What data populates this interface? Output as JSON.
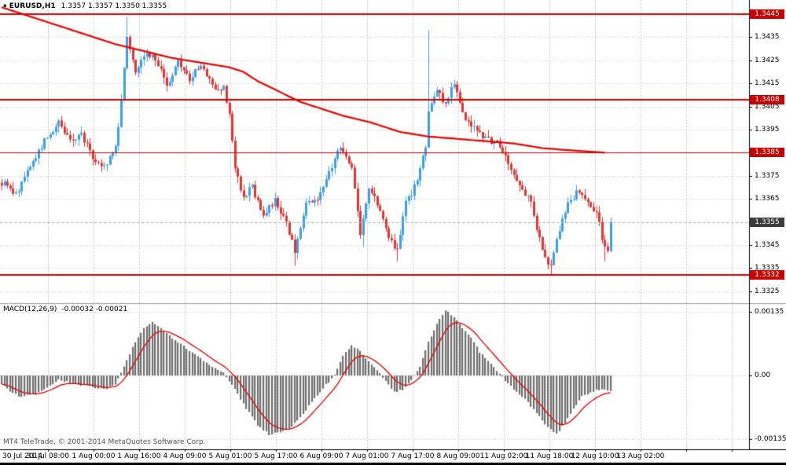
{
  "header": {
    "symbol_period": "EURUSD,H1",
    "ohlc": "1.3357 1.3357 1.3350 1.3355"
  },
  "icons": {
    "chart_marker": "▪"
  },
  "footer": {
    "copyright": "MT4 TeleTrade, © 2001-2014 MetaQuotes Software Corp."
  },
  "colors": {
    "bull": "#3d9fe8",
    "bear": "#e23434",
    "ma_line": "#ee0000",
    "level_line": "#d60000",
    "level_badge": "#c80000",
    "current_badge": "#3c3c3c",
    "histogram": "#6e6e6e",
    "signal": "#e00000",
    "grid": "#cbcbcb",
    "axis_text": "#000000"
  },
  "chart_data": {
    "type": "candlestick",
    "symbol": "EURUSD",
    "timeframe": "H1",
    "title": "EURUSD,H1",
    "price_axis": {
      "ticks": [
        "1.3445",
        "1.3435",
        "1.3425",
        "1.3415",
        "1.3405",
        "1.3395",
        "1.3385",
        "1.3375",
        "1.3365",
        "1.3355",
        "1.3345",
        "1.3335",
        "1.3325"
      ],
      "min": 1.332,
      "max": 1.3451
    },
    "time_axis": {
      "labels": [
        "30 Jul 2014",
        "31 Jul 08:00",
        "1 Aug 00:00",
        "1 Aug 16:00",
        "4 Aug 09:00",
        "5 Aug 01:00",
        "5 Aug 17:00",
        "6 Aug 09:00",
        "7 Aug 01:00",
        "7 Aug 17:00",
        "8 Aug 09:00",
        "11 Aug 02:00",
        "11 Aug 18:00",
        "12 Aug 10:00",
        "13 Aug 02:00"
      ]
    },
    "levels": [
      {
        "label": "1.3445",
        "price": 1.3445,
        "weight": 2
      },
      {
        "label": "1.3408",
        "price": 1.3408,
        "weight": 2
      },
      {
        "label": "1.3385",
        "price": 1.3385,
        "weight": 1
      },
      {
        "label": "1.3332",
        "price": 1.3332,
        "weight": 2
      }
    ],
    "current_price": {
      "label": "1.3355",
      "price": 1.3355
    },
    "candle_count": 215,
    "price_path": [
      [
        0,
        1.3372
      ],
      [
        5,
        1.3367
      ],
      [
        10,
        1.3379
      ],
      [
        15,
        1.339
      ],
      [
        20,
        1.3398
      ],
      [
        24,
        1.339
      ],
      [
        28,
        1.3393
      ],
      [
        32,
        1.3383
      ],
      [
        36,
        1.3379
      ],
      [
        40,
        1.3387
      ],
      [
        42,
        1.3408
      ],
      [
        44,
        1.3436
      ],
      [
        47,
        1.3421
      ],
      [
        50,
        1.3428
      ],
      [
        54,
        1.3426
      ],
      [
        58,
        1.3414
      ],
      [
        62,
        1.3424
      ],
      [
        66,
        1.3417
      ],
      [
        70,
        1.3423
      ],
      [
        74,
        1.3414
      ],
      [
        78,
        1.3413
      ],
      [
        80,
        1.3401
      ],
      [
        82,
        1.3378
      ],
      [
        85,
        1.3366
      ],
      [
        88,
        1.337
      ],
      [
        92,
        1.3358
      ],
      [
        96,
        1.3364
      ],
      [
        100,
        1.3355
      ],
      [
        103,
        1.3342
      ],
      [
        107,
        1.3362
      ],
      [
        111,
        1.3366
      ],
      [
        115,
        1.3376
      ],
      [
        119,
        1.3388
      ],
      [
        123,
        1.3379
      ],
      [
        126,
        1.335
      ],
      [
        129,
        1.3369
      ],
      [
        133,
        1.3361
      ],
      [
        136,
        1.3349
      ],
      [
        139,
        1.3342
      ],
      [
        142,
        1.3363
      ],
      [
        146,
        1.3372
      ],
      [
        149,
        1.3388
      ],
      [
        150,
        1.3404
      ],
      [
        153,
        1.3412
      ],
      [
        156,
        1.3406
      ],
      [
        159,
        1.3416
      ],
      [
        162,
        1.3402
      ],
      [
        166,
        1.3396
      ],
      [
        170,
        1.3391
      ],
      [
        174,
        1.3389
      ],
      [
        178,
        1.3381
      ],
      [
        182,
        1.3371
      ],
      [
        186,
        1.3363
      ],
      [
        190,
        1.3342
      ],
      [
        193,
        1.3336
      ],
      [
        196,
        1.3352
      ],
      [
        199,
        1.3363
      ],
      [
        203,
        1.3369
      ],
      [
        206,
        1.3363
      ],
      [
        209,
        1.3359
      ],
      [
        211,
        1.3348
      ],
      [
        213,
        1.3341
      ],
      [
        214,
        1.3355
      ]
    ],
    "ma_path": [
      [
        0,
        1.3448
      ],
      [
        10,
        1.3444
      ],
      [
        20,
        1.344
      ],
      [
        30,
        1.3436
      ],
      [
        40,
        1.3432
      ],
      [
        50,
        1.3429
      ],
      [
        60,
        1.3426
      ],
      [
        70,
        1.3424
      ],
      [
        80,
        1.3422
      ],
      [
        85,
        1.342
      ],
      [
        90,
        1.3416
      ],
      [
        95,
        1.3413
      ],
      [
        100,
        1.341
      ],
      [
        105,
        1.3407
      ],
      [
        110,
        1.3405
      ],
      [
        120,
        1.3401
      ],
      [
        130,
        1.3398
      ],
      [
        140,
        1.3394
      ],
      [
        150,
        1.3392
      ],
      [
        160,
        1.3391
      ],
      [
        170,
        1.339
      ],
      [
        180,
        1.3389
      ],
      [
        190,
        1.3387
      ],
      [
        200,
        1.3386
      ],
      [
        212,
        1.3385
      ]
    ],
    "spikes": [
      {
        "i": 44,
        "high": 1.3444
      },
      {
        "i": 103,
        "low": 1.3336
      },
      {
        "i": 127,
        "low": 1.3344
      },
      {
        "i": 139,
        "low": 1.3338
      },
      {
        "i": 150,
        "high": 1.3438
      },
      {
        "i": 193,
        "low": 1.3332
      },
      {
        "i": 212,
        "low": 1.3338
      }
    ],
    "macd": {
      "label": "MACD(12,26,9)",
      "values": "-0.00032 -0.00021",
      "main": -0.00032,
      "signal": -0.00021,
      "axis": [
        {
          "label": "0.00135",
          "value": 0.00135
        },
        {
          "label": "0.00",
          "value": 0
        },
        {
          "label": "-0.00135",
          "value": -0.00135
        }
      ],
      "path": [
        [
          0,
          -0.0002
        ],
        [
          6,
          -0.00045
        ],
        [
          12,
          -0.0004
        ],
        [
          20,
          -0.0001
        ],
        [
          28,
          -0.0002
        ],
        [
          36,
          -0.0003
        ],
        [
          40,
          -0.0002
        ],
        [
          43,
          0.0002
        ],
        [
          46,
          0.0006
        ],
        [
          50,
          0.001
        ],
        [
          53,
          0.00115
        ],
        [
          56,
          0.001
        ],
        [
          62,
          0.0007
        ],
        [
          68,
          0.00045
        ],
        [
          74,
          0.0002
        ],
        [
          78,
          5e-05
        ],
        [
          82,
          -0.0003
        ],
        [
          86,
          -0.0007
        ],
        [
          90,
          -0.00105
        ],
        [
          94,
          -0.00125
        ],
        [
          98,
          -0.0012
        ],
        [
          102,
          -0.0011
        ],
        [
          106,
          -0.0008
        ],
        [
          110,
          -0.0005
        ],
        [
          114,
          -0.0002
        ],
        [
          117,
          0.0
        ],
        [
          120,
          0.0004
        ],
        [
          123,
          0.00065
        ],
        [
          126,
          0.0005
        ],
        [
          129,
          0.0003
        ],
        [
          132,
          0.0001
        ],
        [
          135,
          -0.0001
        ],
        [
          138,
          -0.00035
        ],
        [
          141,
          -0.0003
        ],
        [
          144,
          -0.0001
        ],
        [
          147,
          0.0002
        ],
        [
          150,
          0.0007
        ],
        [
          153,
          0.0011
        ],
        [
          156,
          0.00138
        ],
        [
          159,
          0.00125
        ],
        [
          162,
          0.001
        ],
        [
          165,
          0.0008
        ],
        [
          168,
          0.0005
        ],
        [
          171,
          0.0003
        ],
        [
          174,
          0.0001
        ],
        [
          177,
          -0.0001
        ],
        [
          180,
          -0.0003
        ],
        [
          184,
          -0.0005
        ],
        [
          188,
          -0.0008
        ],
        [
          192,
          -0.0011
        ],
        [
          195,
          -0.00125
        ],
        [
          198,
          -0.001
        ],
        [
          201,
          -0.0007
        ],
        [
          204,
          -0.00045
        ],
        [
          207,
          -0.00035
        ],
        [
          210,
          -0.0003
        ],
        [
          214,
          -0.00032
        ]
      ]
    }
  }
}
